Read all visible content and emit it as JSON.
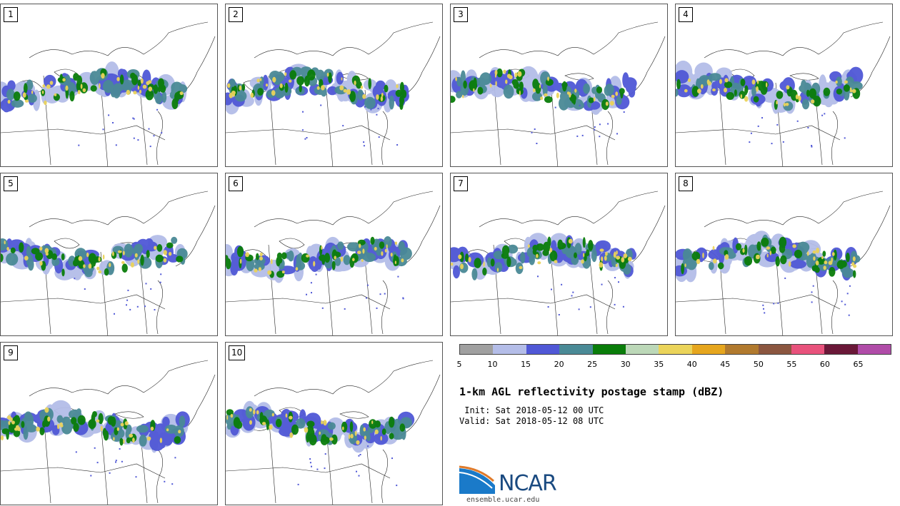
{
  "panels": [
    {
      "label": "1"
    },
    {
      "label": "2"
    },
    {
      "label": "3"
    },
    {
      "label": "4"
    },
    {
      "label": "5"
    },
    {
      "label": "6"
    },
    {
      "label": "7"
    },
    {
      "label": "8"
    },
    {
      "label": "9"
    },
    {
      "label": "10"
    }
  ],
  "colorbar": {
    "colors": [
      "#a0a0a0",
      "#b4bde8",
      "#5058d6",
      "#4a8a96",
      "#0a7d0a",
      "#bcd8b8",
      "#ebd45a",
      "#e6a61e",
      "#b17a2e",
      "#8b5640",
      "#e8527c",
      "#6a1838",
      "#b04ca8"
    ],
    "ticks": [
      "5",
      "10",
      "15",
      "20",
      "25",
      "30",
      "35",
      "40",
      "45",
      "50",
      "55",
      "60",
      "65"
    ]
  },
  "title": "1-km AGL reflectivity postage stamp (dBZ)",
  "init_text": " Init: Sat 2018-05-12 00 UTC",
  "valid_text": "Valid: Sat 2018-05-12 08 UTC",
  "logo": {
    "text": "NCAR",
    "url": "ensemble.ucar.edu"
  }
}
